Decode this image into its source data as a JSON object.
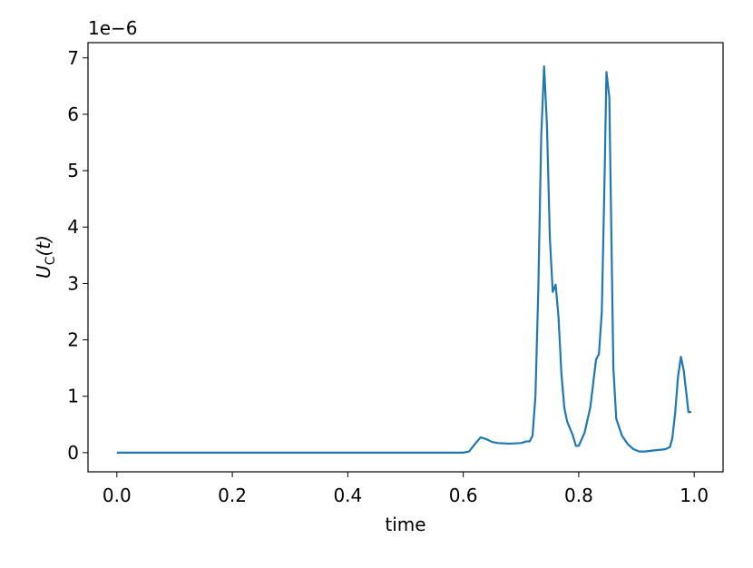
{
  "chart_data": {
    "type": "line",
    "xlabel": "time",
    "ylabel": [
      "U",
      "C",
      "(t)"
    ],
    "offset_label": "1e−6",
    "x": [
      0,
      0.3,
      0.6,
      0.61,
      0.62,
      0.63,
      0.64,
      0.65,
      0.66,
      0.68,
      0.7,
      0.71,
      0.715,
      0.72,
      0.725,
      0.73,
      0.735,
      0.74,
      0.745,
      0.75,
      0.755,
      0.76,
      0.765,
      0.77,
      0.775,
      0.78,
      0.79,
      0.795,
      0.8,
      0.81,
      0.82,
      0.83,
      0.835,
      0.84,
      0.845,
      0.848,
      0.853,
      0.86,
      0.865,
      0.875,
      0.885,
      0.895,
      0.905,
      0.915,
      0.93,
      0.95,
      0.958,
      0.962,
      0.967,
      0.972,
      0.977,
      0.982,
      0.987,
      0.99,
      0.995
    ],
    "series": [
      {
        "color": "#1f77b4",
        "values": [
          0,
          0,
          0,
          0.02,
          0.15,
          0.27,
          0.24,
          0.19,
          0.17,
          0.16,
          0.17,
          0.2,
          0.2,
          0.3,
          1.0,
          2.9,
          5.6,
          6.85,
          5.8,
          3.8,
          2.85,
          2.98,
          2.4,
          1.4,
          0.8,
          0.55,
          0.3,
          0.12,
          0.12,
          0.35,
          0.8,
          1.65,
          1.75,
          2.5,
          5.0,
          6.75,
          6.3,
          1.5,
          0.6,
          0.3,
          0.15,
          0.06,
          0.02,
          0.02,
          0.04,
          0.06,
          0.1,
          0.25,
          0.7,
          1.35,
          1.7,
          1.45,
          1.0,
          0.72,
          0.72
        ]
      }
    ],
    "xlim": [
      -0.05,
      1.05
    ],
    "ylim": [
      -0.34,
      7.27
    ],
    "xticks": [
      {
        "value": 0,
        "label": "0.0"
      },
      0.2,
      0.4,
      0.6,
      0.8,
      {
        "value": 1,
        "label": "1.0"
      }
    ],
    "yticks": [
      0,
      1,
      2,
      3,
      4,
      5,
      6,
      7
    ]
  }
}
